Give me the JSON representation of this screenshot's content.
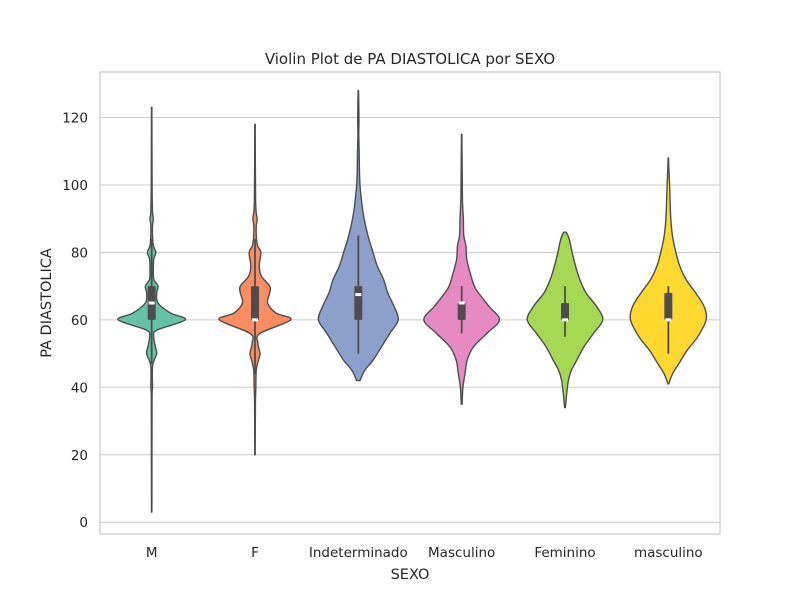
{
  "chart_data": {
    "type": "violin",
    "title": "Violin Plot de PA DIASTOLICA por SEXO",
    "xlabel": "SEXO",
    "ylabel": "PA DIASTOLICA",
    "ylim": [
      -3.5,
      133.5
    ],
    "yticks": [
      0,
      20,
      40,
      60,
      80,
      100,
      120
    ],
    "grid": true,
    "categories": [
      "M",
      "F",
      "Indeterminado",
      "Masculino",
      "Feminino",
      "masculino"
    ],
    "colors": [
      "#66c2a5",
      "#fc8d62",
      "#8da0cb",
      "#e78ac3",
      "#a6d854",
      "#ffd92f"
    ],
    "series": [
      {
        "category": "M",
        "range": [
          3,
          123
        ],
        "quartiles": [
          60,
          65,
          70
        ],
        "whiskers": [
          47,
          84
        ],
        "density": [
          [
            3,
            0.005
          ],
          [
            30,
            0.008
          ],
          [
            38,
            0.01
          ],
          [
            40,
            0.02
          ],
          [
            44,
            0.015
          ],
          [
            47,
            0.03
          ],
          [
            50,
            0.12
          ],
          [
            52,
            0.09
          ],
          [
            55,
            0.05
          ],
          [
            57,
            0.13
          ],
          [
            60,
            0.8
          ],
          [
            62,
            0.45
          ],
          [
            65,
            0.15
          ],
          [
            68,
            0.12
          ],
          [
            70,
            0.15
          ],
          [
            72,
            0.05
          ],
          [
            75,
            0.04
          ],
          [
            78,
            0.05
          ],
          [
            80,
            0.1
          ],
          [
            82,
            0.04
          ],
          [
            85,
            0.02
          ],
          [
            88,
            0.02
          ],
          [
            90,
            0.04
          ],
          [
            92,
            0.02
          ],
          [
            100,
            0.01
          ],
          [
            123,
            0.005
          ]
        ]
      },
      {
        "category": "F",
        "range": [
          20,
          118
        ],
        "quartiles": [
          60,
          60,
          70
        ],
        "whiskers": [
          44,
          84
        ],
        "density": [
          [
            20,
            0.005
          ],
          [
            35,
            0.01
          ],
          [
            40,
            0.02
          ],
          [
            45,
            0.03
          ],
          [
            48,
            0.08
          ],
          [
            50,
            0.12
          ],
          [
            53,
            0.07
          ],
          [
            56,
            0.12
          ],
          [
            60,
            0.85
          ],
          [
            62,
            0.5
          ],
          [
            65,
            0.3
          ],
          [
            68,
            0.35
          ],
          [
            70,
            0.35
          ],
          [
            73,
            0.15
          ],
          [
            76,
            0.1
          ],
          [
            80,
            0.14
          ],
          [
            82,
            0.06
          ],
          [
            85,
            0.03
          ],
          [
            88,
            0.03
          ],
          [
            90,
            0.05
          ],
          [
            95,
            0.015
          ],
          [
            118,
            0.005
          ]
        ]
      },
      {
        "category": "Indeterminado",
        "range": [
          42,
          128
        ],
        "quartiles": [
          60,
          67.5,
          70
        ],
        "whiskers": [
          50,
          85
        ],
        "density": [
          [
            42,
            0.04
          ],
          [
            45,
            0.15
          ],
          [
            48,
            0.35
          ],
          [
            52,
            0.55
          ],
          [
            56,
            0.75
          ],
          [
            60,
            0.95
          ],
          [
            64,
            0.85
          ],
          [
            68,
            0.7
          ],
          [
            72,
            0.6
          ],
          [
            76,
            0.45
          ],
          [
            80,
            0.35
          ],
          [
            84,
            0.25
          ],
          [
            88,
            0.17
          ],
          [
            92,
            0.11
          ],
          [
            96,
            0.07
          ],
          [
            100,
            0.04
          ],
          [
            105,
            0.025
          ],
          [
            110,
            0.02
          ],
          [
            115,
            0.01
          ],
          [
            120,
            0.015
          ],
          [
            128,
            0.005
          ]
        ]
      },
      {
        "category": "Masculino",
        "range": [
          35,
          115
        ],
        "quartiles": [
          60,
          65,
          65
        ],
        "whiskers": [
          56,
          70
        ],
        "density": [
          [
            35,
            0.01
          ],
          [
            40,
            0.03
          ],
          [
            44,
            0.08
          ],
          [
            48,
            0.13
          ],
          [
            52,
            0.28
          ],
          [
            56,
            0.6
          ],
          [
            60,
            0.9
          ],
          [
            64,
            0.65
          ],
          [
            68,
            0.4
          ],
          [
            70,
            0.3
          ],
          [
            74,
            0.2
          ],
          [
            78,
            0.12
          ],
          [
            82,
            0.1
          ],
          [
            85,
            0.05
          ],
          [
            90,
            0.04
          ],
          [
            95,
            0.02
          ],
          [
            100,
            0.015
          ],
          [
            115,
            0.005
          ]
        ]
      },
      {
        "category": "Feminino",
        "range": [
          34,
          86
        ],
        "quartiles": [
          60,
          60,
          65
        ],
        "whiskers": [
          55,
          70
        ],
        "density": [
          [
            34,
            0.01
          ],
          [
            38,
            0.04
          ],
          [
            42,
            0.08
          ],
          [
            45,
            0.15
          ],
          [
            48,
            0.28
          ],
          [
            52,
            0.45
          ],
          [
            56,
            0.68
          ],
          [
            60,
            0.9
          ],
          [
            64,
            0.75
          ],
          [
            68,
            0.5
          ],
          [
            72,
            0.35
          ],
          [
            76,
            0.25
          ],
          [
            80,
            0.17
          ],
          [
            84,
            0.1
          ],
          [
            86,
            0.03
          ]
        ]
      },
      {
        "category": "masculino",
        "range": [
          41,
          108
        ],
        "quartiles": [
          60,
          60,
          68
        ],
        "whiskers": [
          50,
          70
        ],
        "density": [
          [
            41,
            0.01
          ],
          [
            44,
            0.1
          ],
          [
            47,
            0.25
          ],
          [
            51,
            0.45
          ],
          [
            55,
            0.7
          ],
          [
            60,
            0.9
          ],
          [
            64,
            0.85
          ],
          [
            68,
            0.65
          ],
          [
            72,
            0.42
          ],
          [
            76,
            0.27
          ],
          [
            80,
            0.18
          ],
          [
            84,
            0.11
          ],
          [
            88,
            0.07
          ],
          [
            92,
            0.05
          ],
          [
            96,
            0.04
          ],
          [
            100,
            0.03
          ],
          [
            104,
            0.015
          ],
          [
            108,
            0.005
          ]
        ]
      }
    ]
  }
}
